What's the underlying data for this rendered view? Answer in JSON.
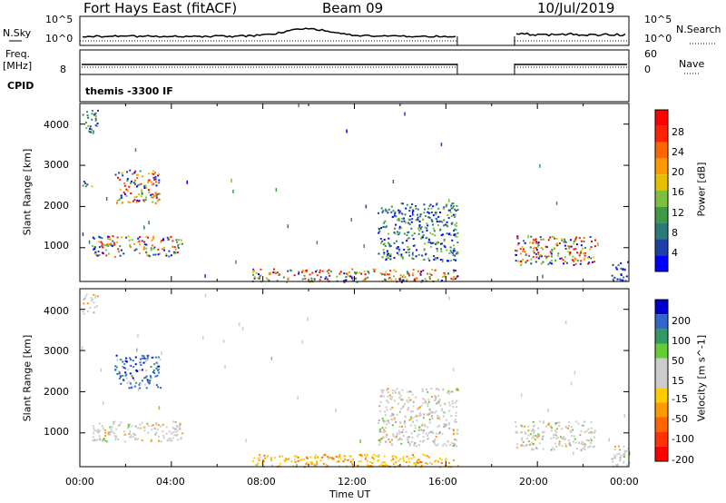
{
  "header": {
    "station": "Fort Hays East (fitACF)",
    "beam": "Beam 09",
    "date": "10/Jul/2019"
  },
  "strips": {
    "nsky_label": "N.Sky",
    "nsky_ticks": [
      "10^5",
      "10^0"
    ],
    "nsearch_label": "N.Search",
    "nsearch_ticks": [
      "10^5",
      "10^0"
    ],
    "freq_label": "Freq.",
    "freq_unit": "[MHz]",
    "freq_ticks": [
      "",
      "8"
    ],
    "nave_label": "Nave",
    "nave_ticks": [
      "60",
      "0"
    ],
    "cpid_label": "CPID",
    "cpid_value": "themis -3300 IF"
  },
  "colors": {
    "power_scale": [
      "#0000ff",
      "#1f3fa6",
      "#2a7a7a",
      "#3e9a45",
      "#7fbf3f",
      "#e6c000",
      "#ff9900",
      "#ff6600",
      "#ff2200",
      "#ff0000"
    ],
    "velocity_scale": [
      "#ff0000",
      "#ff3300",
      "#ff6600",
      "#ff9900",
      "#ffcc00",
      "#cccccc",
      "#cccccc",
      "#66cc33",
      "#339966",
      "#3366cc",
      "#0000cc"
    ]
  },
  "chart_data": [
    {
      "type": "heatmap",
      "title": "",
      "xlabel": "Time UT",
      "ylabel": "Slant Range [km]",
      "x_tick_labels": [
        "00:00",
        "04:00",
        "08:00",
        "12:00",
        "16:00",
        "20:00",
        "00:00"
      ],
      "y_tick_labels": [
        "4000",
        "3000",
        "2000",
        "1000"
      ],
      "yticks": [
        4000,
        3000,
        2000,
        1000
      ],
      "ylim": [
        180,
        4500
      ],
      "xlim": [
        0,
        24
      ],
      "colorbar": {
        "label": "Power [dB]",
        "tick_labels": [
          "28",
          "24",
          "20",
          "16",
          "12",
          "8",
          "4"
        ],
        "range": [
          0,
          30
        ]
      },
      "data_gap_hours": [
        16.5,
        19.0
      ],
      "blobs": [
        {
          "t": [
            0.1,
            0.8
          ],
          "r": [
            3800,
            4400
          ],
          "level": "mid"
        },
        {
          "t": [
            0.1,
            0.5
          ],
          "r": [
            2450,
            2650
          ],
          "level": "high"
        },
        {
          "t": [
            1.5,
            3.5
          ],
          "r": [
            2100,
            2900
          ],
          "level": "high"
        },
        {
          "t": [
            0.5,
            4.5
          ],
          "r": [
            800,
            1300
          ],
          "level": "high"
        },
        {
          "t": [
            7.5,
            16.5
          ],
          "r": [
            180,
            500
          ],
          "level": "high"
        },
        {
          "t": [
            13.0,
            16.5
          ],
          "r": [
            700,
            2100
          ],
          "level": "mid"
        },
        {
          "t": [
            19.0,
            22.5
          ],
          "r": [
            600,
            1300
          ],
          "level": "high"
        },
        {
          "t": [
            23.2,
            24.0
          ],
          "r": [
            200,
            700
          ],
          "level": "low"
        }
      ]
    },
    {
      "type": "heatmap",
      "title": "",
      "xlabel": "Time UT",
      "ylabel": "Slant Range [km]",
      "x_tick_labels": [
        "00:00",
        "04:00",
        "08:00",
        "12:00",
        "16:00",
        "20:00",
        "00:00"
      ],
      "y_tick_labels": [
        "4000",
        "3000",
        "2000",
        "1000"
      ],
      "yticks": [
        4000,
        3000,
        2000,
        1000
      ],
      "ylim": [
        180,
        4500
      ],
      "xlim": [
        0,
        24
      ],
      "colorbar": {
        "label": "Velocity [m s^-1]",
        "tick_labels": [
          "200",
          "100",
          "50",
          "15",
          "-15",
          "-50",
          "-100",
          "-200"
        ],
        "range": [
          -250,
          250
        ]
      },
      "data_gap_hours": [
        16.5,
        19.0
      ],
      "blobs": [
        {
          "t": [
            0.1,
            0.8
          ],
          "r": [
            3900,
            4400
          ],
          "level": "gray"
        },
        {
          "t": [
            1.5,
            3.5
          ],
          "r": [
            2100,
            2900
          ],
          "level": "blue"
        },
        {
          "t": [
            0.5,
            4.5
          ],
          "r": [
            800,
            1300
          ],
          "level": "gray"
        },
        {
          "t": [
            7.5,
            16.5
          ],
          "r": [
            180,
            500
          ],
          "level": "orange"
        },
        {
          "t": [
            13.0,
            16.5
          ],
          "r": [
            700,
            2100
          ],
          "level": "gray"
        },
        {
          "t": [
            19.0,
            22.5
          ],
          "r": [
            600,
            1300
          ],
          "level": "gray"
        },
        {
          "t": [
            23.2,
            24.0
          ],
          "r": [
            200,
            700
          ],
          "level": "gray"
        }
      ]
    }
  ]
}
